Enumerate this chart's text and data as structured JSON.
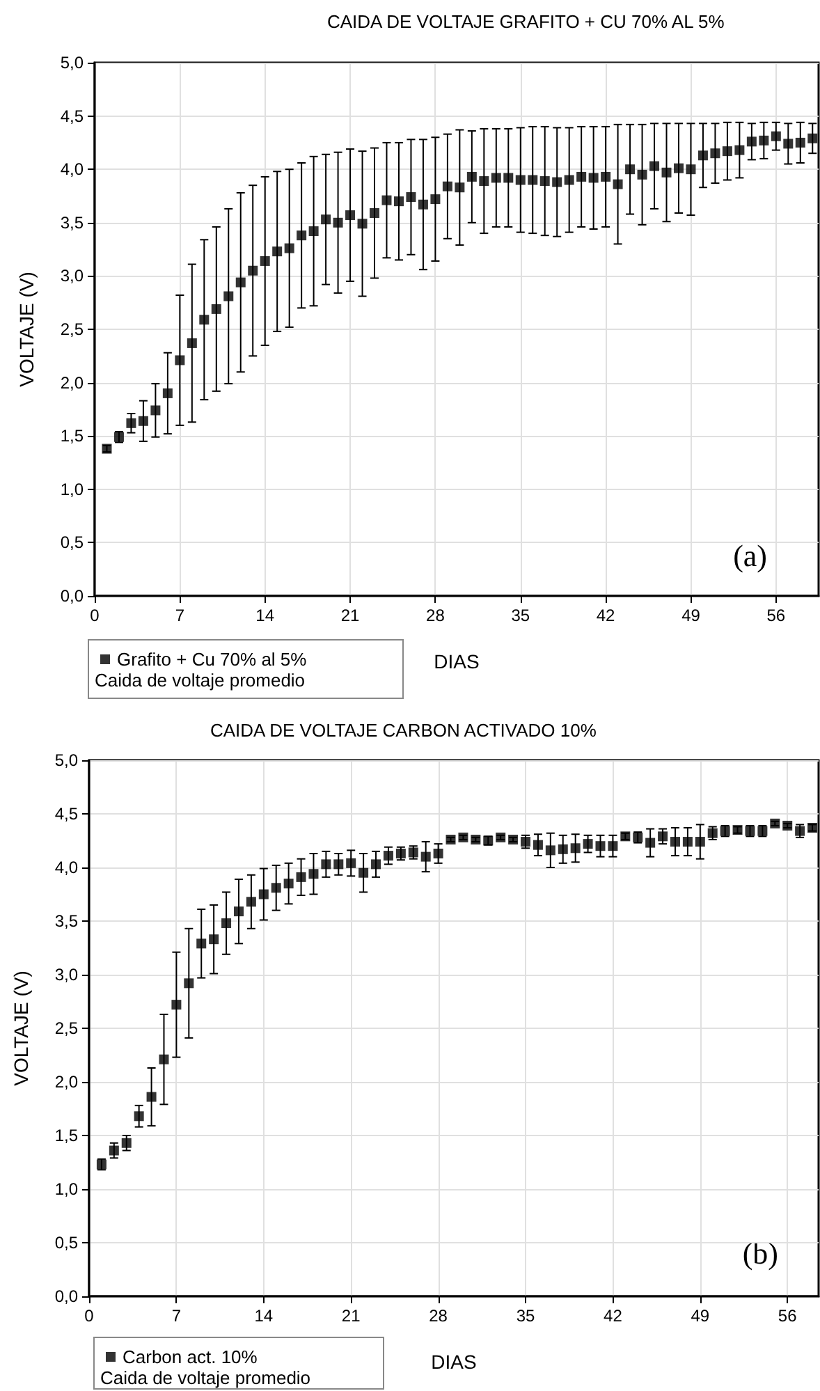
{
  "chart_data": [
    {
      "type": "scatter",
      "title": "CAIDA DE VOLTAJE GRAFITO + CU 70% AL 5%",
      "xlabel": "DIAS",
      "ylabel": "VOLTAJE (V)",
      "legend_title": "Caida de voltaje promedio",
      "annotations": [
        "(a)"
      ],
      "x": [
        1,
        2,
        3,
        4,
        5,
        6,
        7,
        8,
        9,
        10,
        11,
        12,
        13,
        14,
        15,
        16,
        17,
        18,
        19,
        20,
        21,
        22,
        23,
        24,
        25,
        26,
        27,
        28,
        29,
        30,
        31,
        32,
        33,
        34,
        35,
        36,
        37,
        38,
        39,
        40,
        41,
        42,
        43,
        44,
        45,
        46,
        47,
        48,
        49,
        50,
        51,
        52,
        53,
        54,
        55,
        56,
        57,
        58,
        59
      ],
      "series": [
        {
          "name": "Grafito + Cu 70% al 5%",
          "color": "#000000",
          "values": [
            1.38,
            1.49,
            1.62,
            1.64,
            1.74,
            1.9,
            2.21,
            2.37,
            2.59,
            2.69,
            2.81,
            2.94,
            3.05,
            3.14,
            3.23,
            3.26,
            3.38,
            3.42,
            3.53,
            3.5,
            3.57,
            3.49,
            3.59,
            3.71,
            3.7,
            3.74,
            3.67,
            3.72,
            3.84,
            3.83,
            3.93,
            3.89,
            3.92,
            3.92,
            3.9,
            3.9,
            3.89,
            3.88,
            3.9,
            3.93,
            3.92,
            3.93,
            3.86,
            4.0,
            3.95,
            4.03,
            3.97,
            4.01,
            4.0,
            4.13,
            4.15,
            4.17,
            4.18,
            4.26,
            4.27,
            4.31,
            4.24,
            4.25,
            4.29
          ],
          "errors": [
            0.03,
            0.05,
            0.09,
            0.19,
            0.25,
            0.38,
            0.61,
            0.74,
            0.75,
            0.77,
            0.82,
            0.84,
            0.8,
            0.79,
            0.75,
            0.74,
            0.68,
            0.7,
            0.61,
            0.66,
            0.62,
            0.68,
            0.61,
            0.54,
            0.55,
            0.54,
            0.61,
            0.58,
            0.49,
            0.54,
            0.43,
            0.49,
            0.46,
            0.46,
            0.49,
            0.5,
            0.51,
            0.51,
            0.49,
            0.47,
            0.48,
            0.47,
            0.56,
            0.42,
            0.47,
            0.4,
            0.46,
            0.42,
            0.43,
            0.3,
            0.28,
            0.27,
            0.26,
            0.17,
            0.17,
            0.13,
            0.19,
            0.19,
            0.14
          ]
        }
      ],
      "xlim": [
        0,
        59.5
      ],
      "xticks": [
        0,
        7,
        14,
        21,
        28,
        35,
        42,
        49,
        56
      ],
      "ylim": [
        0,
        5
      ],
      "yticks": [
        {
          "value": 0,
          "label": "0,0"
        },
        {
          "value": 0.5,
          "label": "0,5"
        },
        {
          "value": 1,
          "label": "1,0"
        },
        {
          "value": 1.5,
          "label": "1,5"
        },
        {
          "value": 2,
          "label": "2,0"
        },
        {
          "value": 2.5,
          "label": "2,5"
        },
        {
          "value": 3,
          "label": "3,0"
        },
        {
          "value": 3.5,
          "label": "3,5"
        },
        {
          "value": 4,
          "label": "4,0"
        },
        {
          "value": 4.5,
          "label": "4,5"
        },
        {
          "value": 5,
          "label": "5,0"
        }
      ],
      "grid": true,
      "legend": "bottom left",
      "marker": "square"
    },
    {
      "type": "scatter",
      "title": "CAIDA DE VOLTAJE CARBON ACTIVADO 10%",
      "xlabel": "DIAS",
      "ylabel": "VOLTAJE (V)",
      "legend_title": "Caida de voltaje promedio",
      "annotations": [
        "(b)"
      ],
      "x": [
        1,
        2,
        3,
        4,
        5,
        6,
        7,
        8,
        9,
        10,
        11,
        12,
        13,
        14,
        15,
        16,
        17,
        18,
        19,
        20,
        21,
        22,
        23,
        24,
        25,
        26,
        27,
        28,
        29,
        30,
        31,
        32,
        33,
        34,
        35,
        36,
        37,
        38,
        39,
        40,
        41,
        42,
        43,
        44,
        45,
        46,
        47,
        48,
        49,
        50,
        51,
        52,
        53,
        54,
        55,
        56,
        57,
        58
      ],
      "series": [
        {
          "name": "Carbon act. 10%",
          "color": "#000000",
          "values": [
            1.23,
            1.36,
            1.43,
            1.68,
            1.86,
            2.21,
            2.72,
            2.92,
            3.29,
            3.33,
            3.48,
            3.59,
            3.68,
            3.75,
            3.81,
            3.85,
            3.91,
            3.94,
            4.03,
            4.03,
            4.04,
            3.95,
            4.03,
            4.11,
            4.13,
            4.14,
            4.1,
            4.13,
            4.26,
            4.28,
            4.26,
            4.25,
            4.28,
            4.26,
            4.24,
            4.21,
            4.16,
            4.17,
            4.18,
            4.22,
            4.2,
            4.2,
            4.29,
            4.28,
            4.23,
            4.29,
            4.24,
            4.24,
            4.24,
            4.32,
            4.34,
            4.35,
            4.34,
            4.34,
            4.41,
            4.39,
            4.34,
            4.37
          ],
          "errors": [
            0.05,
            0.07,
            0.07,
            0.1,
            0.27,
            0.42,
            0.49,
            0.51,
            0.32,
            0.32,
            0.29,
            0.3,
            0.25,
            0.24,
            0.21,
            0.19,
            0.17,
            0.19,
            0.12,
            0.1,
            0.12,
            0.18,
            0.12,
            0.08,
            0.06,
            0.06,
            0.14,
            0.09,
            0.02,
            0.02,
            0.02,
            0.04,
            0.02,
            0.02,
            0.06,
            0.1,
            0.16,
            0.13,
            0.13,
            0.08,
            0.1,
            0.1,
            0.03,
            0.05,
            0.13,
            0.07,
            0.13,
            0.13,
            0.16,
            0.06,
            0.05,
            0.03,
            0.05,
            0.05,
            0.02,
            0.02,
            0.06,
            0.03
          ]
        }
      ],
      "xlim": [
        0,
        58.5
      ],
      "xticks": [
        0,
        7,
        14,
        21,
        28,
        35,
        42,
        49,
        56
      ],
      "ylim": [
        0,
        5
      ],
      "yticks": [
        {
          "value": 0,
          "label": "0,0"
        },
        {
          "value": 0.5,
          "label": "0,5"
        },
        {
          "value": 1,
          "label": "1,0"
        },
        {
          "value": 1.5,
          "label": "1,5"
        },
        {
          "value": 2,
          "label": "2,0"
        },
        {
          "value": 2.5,
          "label": "2,5"
        },
        {
          "value": 3,
          "label": "3,0"
        },
        {
          "value": 3.5,
          "label": "3,5"
        },
        {
          "value": 4,
          "label": "4,0"
        },
        {
          "value": 4.5,
          "label": "4,5"
        },
        {
          "value": 5,
          "label": "5,0"
        }
      ],
      "grid": true,
      "legend": "bottom left",
      "marker": "square"
    }
  ]
}
